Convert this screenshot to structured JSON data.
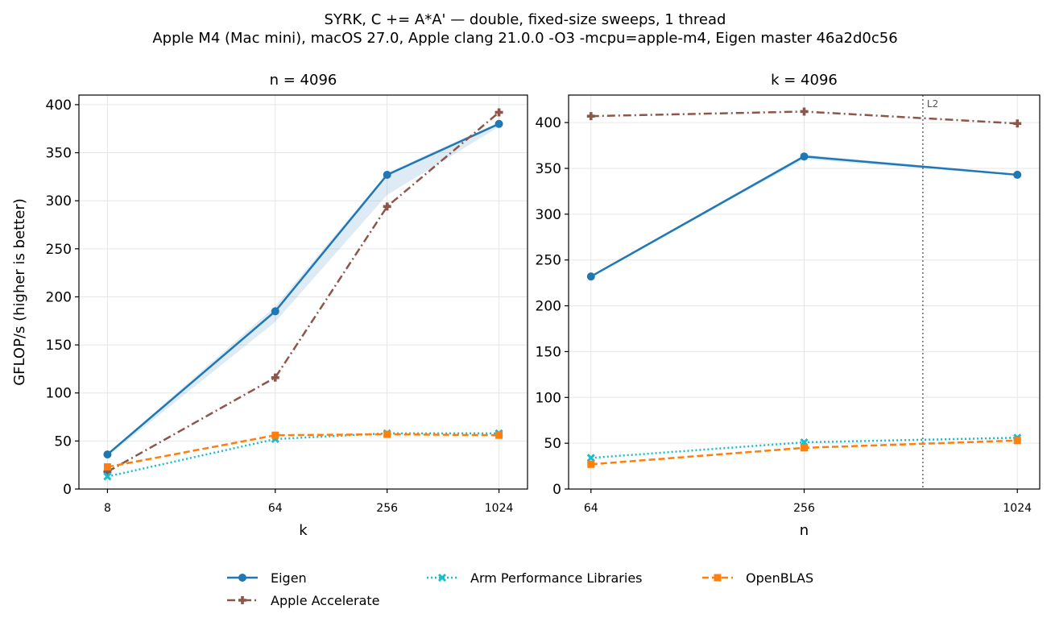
{
  "title_lines": [
    "SYRK, C += A*A' — double, fixed-size sweeps, 1 thread",
    "Apple M4 (Mac mini), macOS 27.0, Apple clang 21.0.0 -O3 -mcpu=apple-m4, Eigen master 46a2d0c56"
  ],
  "legend": {
    "placement": "bottom-center",
    "entries": [
      {
        "name": "Eigen",
        "color": "#1f77b4",
        "marker": "circle",
        "dash": "solid"
      },
      {
        "name": "Apple Accelerate",
        "color": "#8c564b",
        "marker": "plus",
        "dash": "dashdot"
      },
      {
        "name": "Arm Performance Libraries",
        "color": "#17becf",
        "marker": "x",
        "dash": "dotted"
      },
      {
        "name": "OpenBLAS",
        "color": "#ff7f0e",
        "marker": "square",
        "dash": "dashed"
      }
    ]
  },
  "chart_data": [
    {
      "type": "line",
      "title": "n = 4096",
      "xlabel": "k",
      "ylabel": "GFLOP/s (higher is better)",
      "x_scale": "log2",
      "x": [
        8,
        64,
        256,
        1024
      ],
      "xticks": [
        "8",
        "64",
        "256",
        "1024"
      ],
      "ylim": [
        0,
        410
      ],
      "yticks": [
        0,
        50,
        100,
        150,
        200,
        250,
        300,
        350,
        400
      ],
      "grid": true,
      "series": [
        {
          "name": "Eigen",
          "values": [
            36,
            185,
            327,
            380
          ],
          "band_low": [
            34,
            174,
            306,
            377
          ],
          "band_high": [
            37,
            190,
            329,
            382
          ]
        },
        {
          "name": "Apple Accelerate",
          "values": [
            18,
            116,
            294,
            392
          ]
        },
        {
          "name": "Arm Performance Libraries",
          "values": [
            13,
            52,
            58,
            58
          ]
        },
        {
          "name": "OpenBLAS",
          "values": [
            23,
            56,
            57,
            56
          ]
        }
      ]
    },
    {
      "type": "line",
      "title": "k = 4096",
      "xlabel": "n",
      "ylabel": "",
      "x_scale": "log2",
      "x": [
        64,
        256,
        1024
      ],
      "xticks": [
        "64",
        "256",
        "1024"
      ],
      "ylim": [
        0,
        430
      ],
      "yticks": [
        0,
        50,
        100,
        150,
        200,
        250,
        300,
        350,
        400
      ],
      "grid": true,
      "annotations": [
        {
          "type": "vline",
          "x": 554,
          "label": "L2"
        }
      ],
      "series": [
        {
          "name": "Eigen",
          "values": [
            232,
            363,
            343
          ],
          "band_low": [
            232,
            360,
            342
          ],
          "band_high": [
            233,
            365,
            344
          ]
        },
        {
          "name": "Apple Accelerate",
          "values": [
            407,
            412,
            399
          ]
        },
        {
          "name": "Arm Performance Libraries",
          "values": [
            34,
            51,
            56
          ]
        },
        {
          "name": "OpenBLAS",
          "values": [
            27,
            45,
            53
          ]
        }
      ]
    }
  ]
}
